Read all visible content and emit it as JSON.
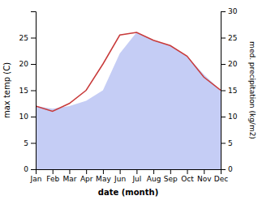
{
  "chart_data": {
    "type": "line",
    "categories": [
      "Jan",
      "Feb",
      "Mar",
      "Apr",
      "May",
      "Jun",
      "Jul",
      "Aug",
      "Sep",
      "Oct",
      "Nov",
      "Dec"
    ],
    "series": [
      {
        "type": "area",
        "axis": "y2",
        "color": "#c5cdf5",
        "values": [
          12.0,
          11.5,
          12.0,
          13.0,
          15.0,
          22.0,
          26.0,
          24.5,
          23.5,
          21.5,
          18.0,
          15.0
        ]
      },
      {
        "type": "line",
        "color": "#c83a3a",
        "values": [
          12.0,
          11.0,
          12.5,
          15.0,
          20.0,
          25.5,
          26.0,
          24.5,
          23.5,
          21.5,
          17.5,
          15.0
        ]
      }
    ],
    "xlabel": "date (month)",
    "ylabel": "max temp (C)",
    "y2label": "med. precipitation (kg/m2)",
    "ylim": [
      0,
      30
    ],
    "yticks": [
      0,
      5,
      10,
      15,
      20,
      25
    ],
    "y2lim": [
      0,
      30
    ],
    "y2ticks": [
      0,
      5,
      10,
      15,
      20,
      25,
      30
    ]
  }
}
